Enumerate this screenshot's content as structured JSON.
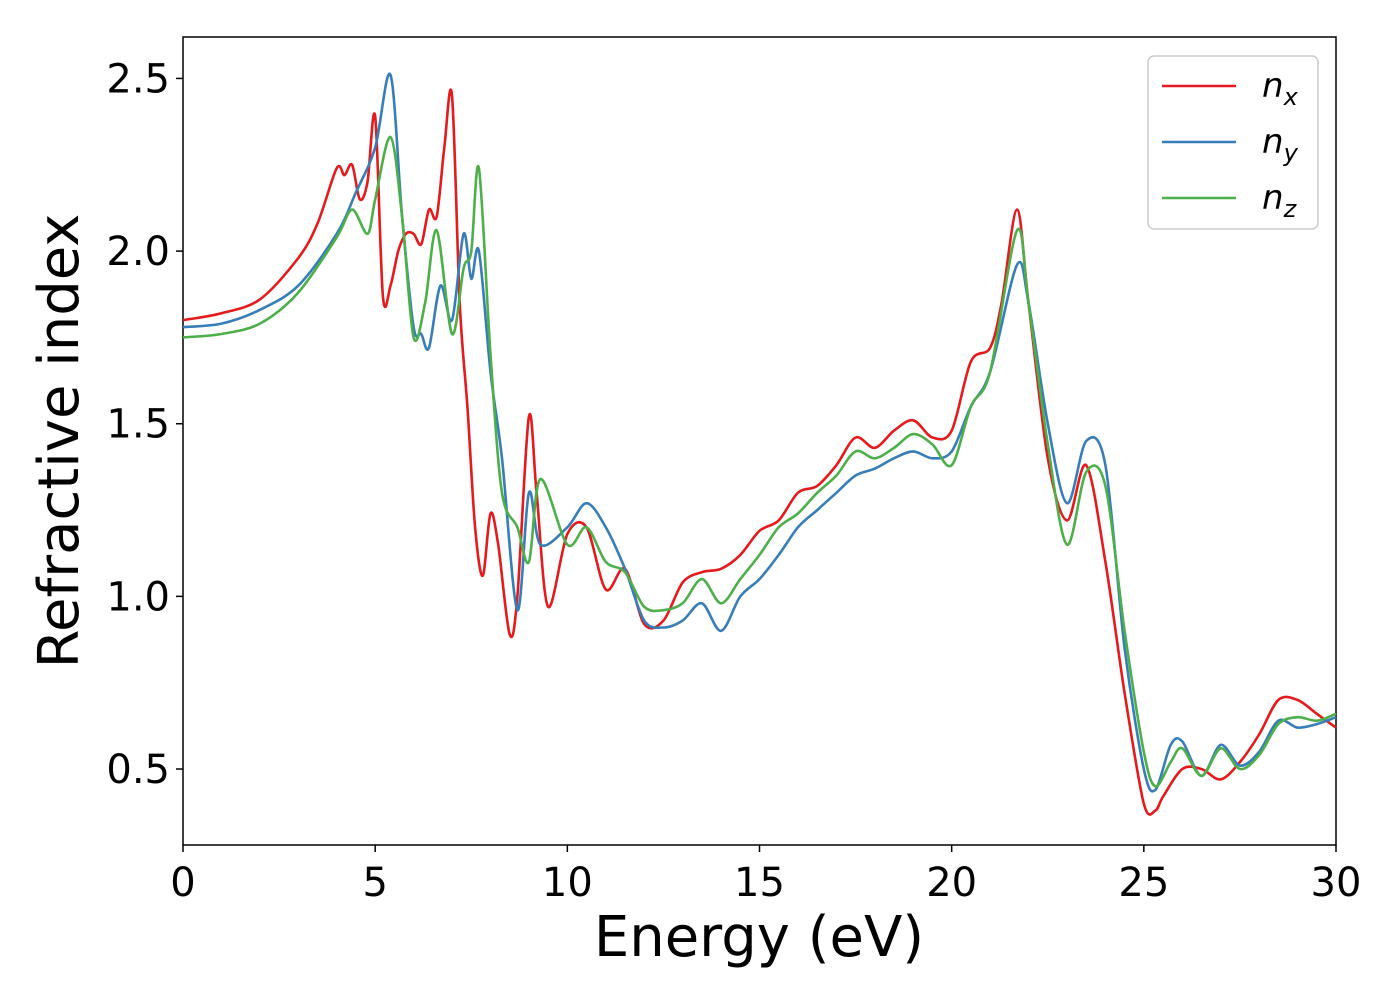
{
  "chart_data": {
    "type": "line",
    "xlabel": "Energy (eV)",
    "ylabel": "Refractive index",
    "xlim": [
      0,
      30
    ],
    "ylim": [
      0.28,
      2.62
    ],
    "xticks": [
      "0",
      "5",
      "10",
      "15",
      "20",
      "25",
      "30"
    ],
    "yticks": [
      "0.5",
      "1.0",
      "1.5",
      "2.0",
      "2.5"
    ],
    "grid": false,
    "legend_position": "top-right",
    "series": [
      {
        "name": "n",
        "subscript": "x",
        "color": "#e41a1c",
        "x": [
          0,
          1,
          2,
          3,
          3.5,
          4,
          4.2,
          4.4,
          4.6,
          4.8,
          5.0,
          5.2,
          5.4,
          5.6,
          5.8,
          6.0,
          6.2,
          6.4,
          6.6,
          6.8,
          7.0,
          7.2,
          7.4,
          7.6,
          7.8,
          8.0,
          8.2,
          8.5,
          8.7,
          9.0,
          9.2,
          9.5,
          10.0,
          10.5,
          11.0,
          11.5,
          12.0,
          12.5,
          13.0,
          13.5,
          14.0,
          14.5,
          15.0,
          15.5,
          16.0,
          16.5,
          17.0,
          17.5,
          18.0,
          18.5,
          19.0,
          19.5,
          20.0,
          20.5,
          21.0,
          21.3,
          21.7,
          22.0,
          22.5,
          23.0,
          23.5,
          24.0,
          24.5,
          25.0,
          25.3,
          25.5,
          26.0,
          26.5,
          27.0,
          27.5,
          28.0,
          28.5,
          29.0,
          29.5,
          30.0
        ],
        "values": [
          1.8,
          1.82,
          1.86,
          1.98,
          2.08,
          2.24,
          2.22,
          2.25,
          2.15,
          2.2,
          2.39,
          1.87,
          1.9,
          2.0,
          2.05,
          2.05,
          2.02,
          2.12,
          2.1,
          2.3,
          2.45,
          1.85,
          1.55,
          1.2,
          1.06,
          1.24,
          1.15,
          0.89,
          1.0,
          1.52,
          1.3,
          0.97,
          1.18,
          1.2,
          1.02,
          1.08,
          0.92,
          0.93,
          1.04,
          1.07,
          1.08,
          1.12,
          1.19,
          1.22,
          1.3,
          1.32,
          1.38,
          1.46,
          1.43,
          1.48,
          1.51,
          1.46,
          1.48,
          1.68,
          1.72,
          1.85,
          2.12,
          1.85,
          1.4,
          1.22,
          1.38,
          1.1,
          0.72,
          0.4,
          0.38,
          0.42,
          0.5,
          0.5,
          0.47,
          0.52,
          0.6,
          0.7,
          0.7,
          0.66,
          0.62
        ]
      },
      {
        "name": "n",
        "subscript": "y",
        "color": "#377eb8",
        "x": [
          0,
          1,
          2,
          3,
          4,
          4.5,
          5.0,
          5.4,
          5.7,
          6.0,
          6.2,
          6.4,
          6.7,
          7.0,
          7.3,
          7.5,
          7.7,
          8.0,
          8.3,
          8.7,
          9.0,
          9.3,
          10.0,
          10.5,
          11.0,
          11.5,
          12.0,
          12.5,
          13.0,
          13.5,
          14.0,
          14.5,
          15.0,
          15.5,
          16.0,
          16.5,
          17.0,
          17.5,
          18.0,
          18.5,
          19.0,
          19.5,
          20.0,
          20.5,
          21.0,
          21.7,
          22.0,
          22.5,
          23.0,
          23.5,
          24.0,
          24.5,
          25.0,
          25.3,
          25.7,
          26.0,
          26.5,
          27.0,
          27.5,
          28.0,
          28.5,
          29.0,
          29.5,
          30.0
        ],
        "values": [
          1.78,
          1.79,
          1.83,
          1.9,
          2.05,
          2.17,
          2.3,
          2.51,
          2.1,
          1.78,
          1.76,
          1.72,
          1.9,
          1.8,
          2.05,
          1.92,
          2.0,
          1.65,
          1.4,
          0.96,
          1.3,
          1.15,
          1.2,
          1.27,
          1.2,
          1.08,
          0.93,
          0.91,
          0.93,
          0.98,
          0.9,
          1.0,
          1.05,
          1.12,
          1.2,
          1.25,
          1.3,
          1.35,
          1.37,
          1.4,
          1.42,
          1.4,
          1.42,
          1.55,
          1.65,
          1.96,
          1.85,
          1.5,
          1.27,
          1.45,
          1.38,
          0.85,
          0.5,
          0.44,
          0.57,
          0.58,
          0.48,
          0.57,
          0.51,
          0.55,
          0.64,
          0.62,
          0.63,
          0.65
        ]
      },
      {
        "name": "n",
        "subscript": "z",
        "color": "#4daf4a",
        "x": [
          0,
          1,
          2,
          3,
          4,
          4.4,
          4.8,
          5.0,
          5.4,
          5.7,
          6.0,
          6.3,
          6.6,
          7.0,
          7.3,
          7.5,
          7.7,
          8.0,
          8.3,
          8.7,
          9.0,
          9.3,
          10.0,
          10.5,
          11.0,
          11.5,
          12.0,
          12.5,
          13.0,
          13.5,
          14.0,
          14.5,
          15.0,
          15.5,
          16.0,
          16.5,
          17.0,
          17.5,
          18.0,
          18.5,
          19.0,
          19.5,
          20.0,
          20.5,
          21.0,
          21.7,
          22.0,
          22.5,
          23.0,
          23.5,
          24.0,
          24.5,
          25.0,
          25.3,
          25.7,
          26.0,
          26.5,
          27.0,
          27.5,
          28.0,
          28.5,
          29.0,
          29.5,
          30.0
        ],
        "values": [
          1.75,
          1.76,
          1.79,
          1.88,
          2.04,
          2.12,
          2.05,
          2.15,
          2.33,
          2.1,
          1.75,
          1.85,
          2.06,
          1.76,
          1.95,
          2.0,
          2.24,
          1.7,
          1.3,
          1.2,
          1.1,
          1.34,
          1.15,
          1.2,
          1.1,
          1.07,
          0.97,
          0.96,
          0.98,
          1.05,
          0.98,
          1.05,
          1.12,
          1.2,
          1.24,
          1.3,
          1.35,
          1.42,
          1.4,
          1.43,
          1.47,
          1.44,
          1.38,
          1.55,
          1.65,
          2.06,
          1.85,
          1.44,
          1.15,
          1.36,
          1.32,
          0.9,
          0.55,
          0.45,
          0.52,
          0.56,
          0.48,
          0.56,
          0.5,
          0.54,
          0.63,
          0.65,
          0.64,
          0.66
        ]
      }
    ]
  }
}
